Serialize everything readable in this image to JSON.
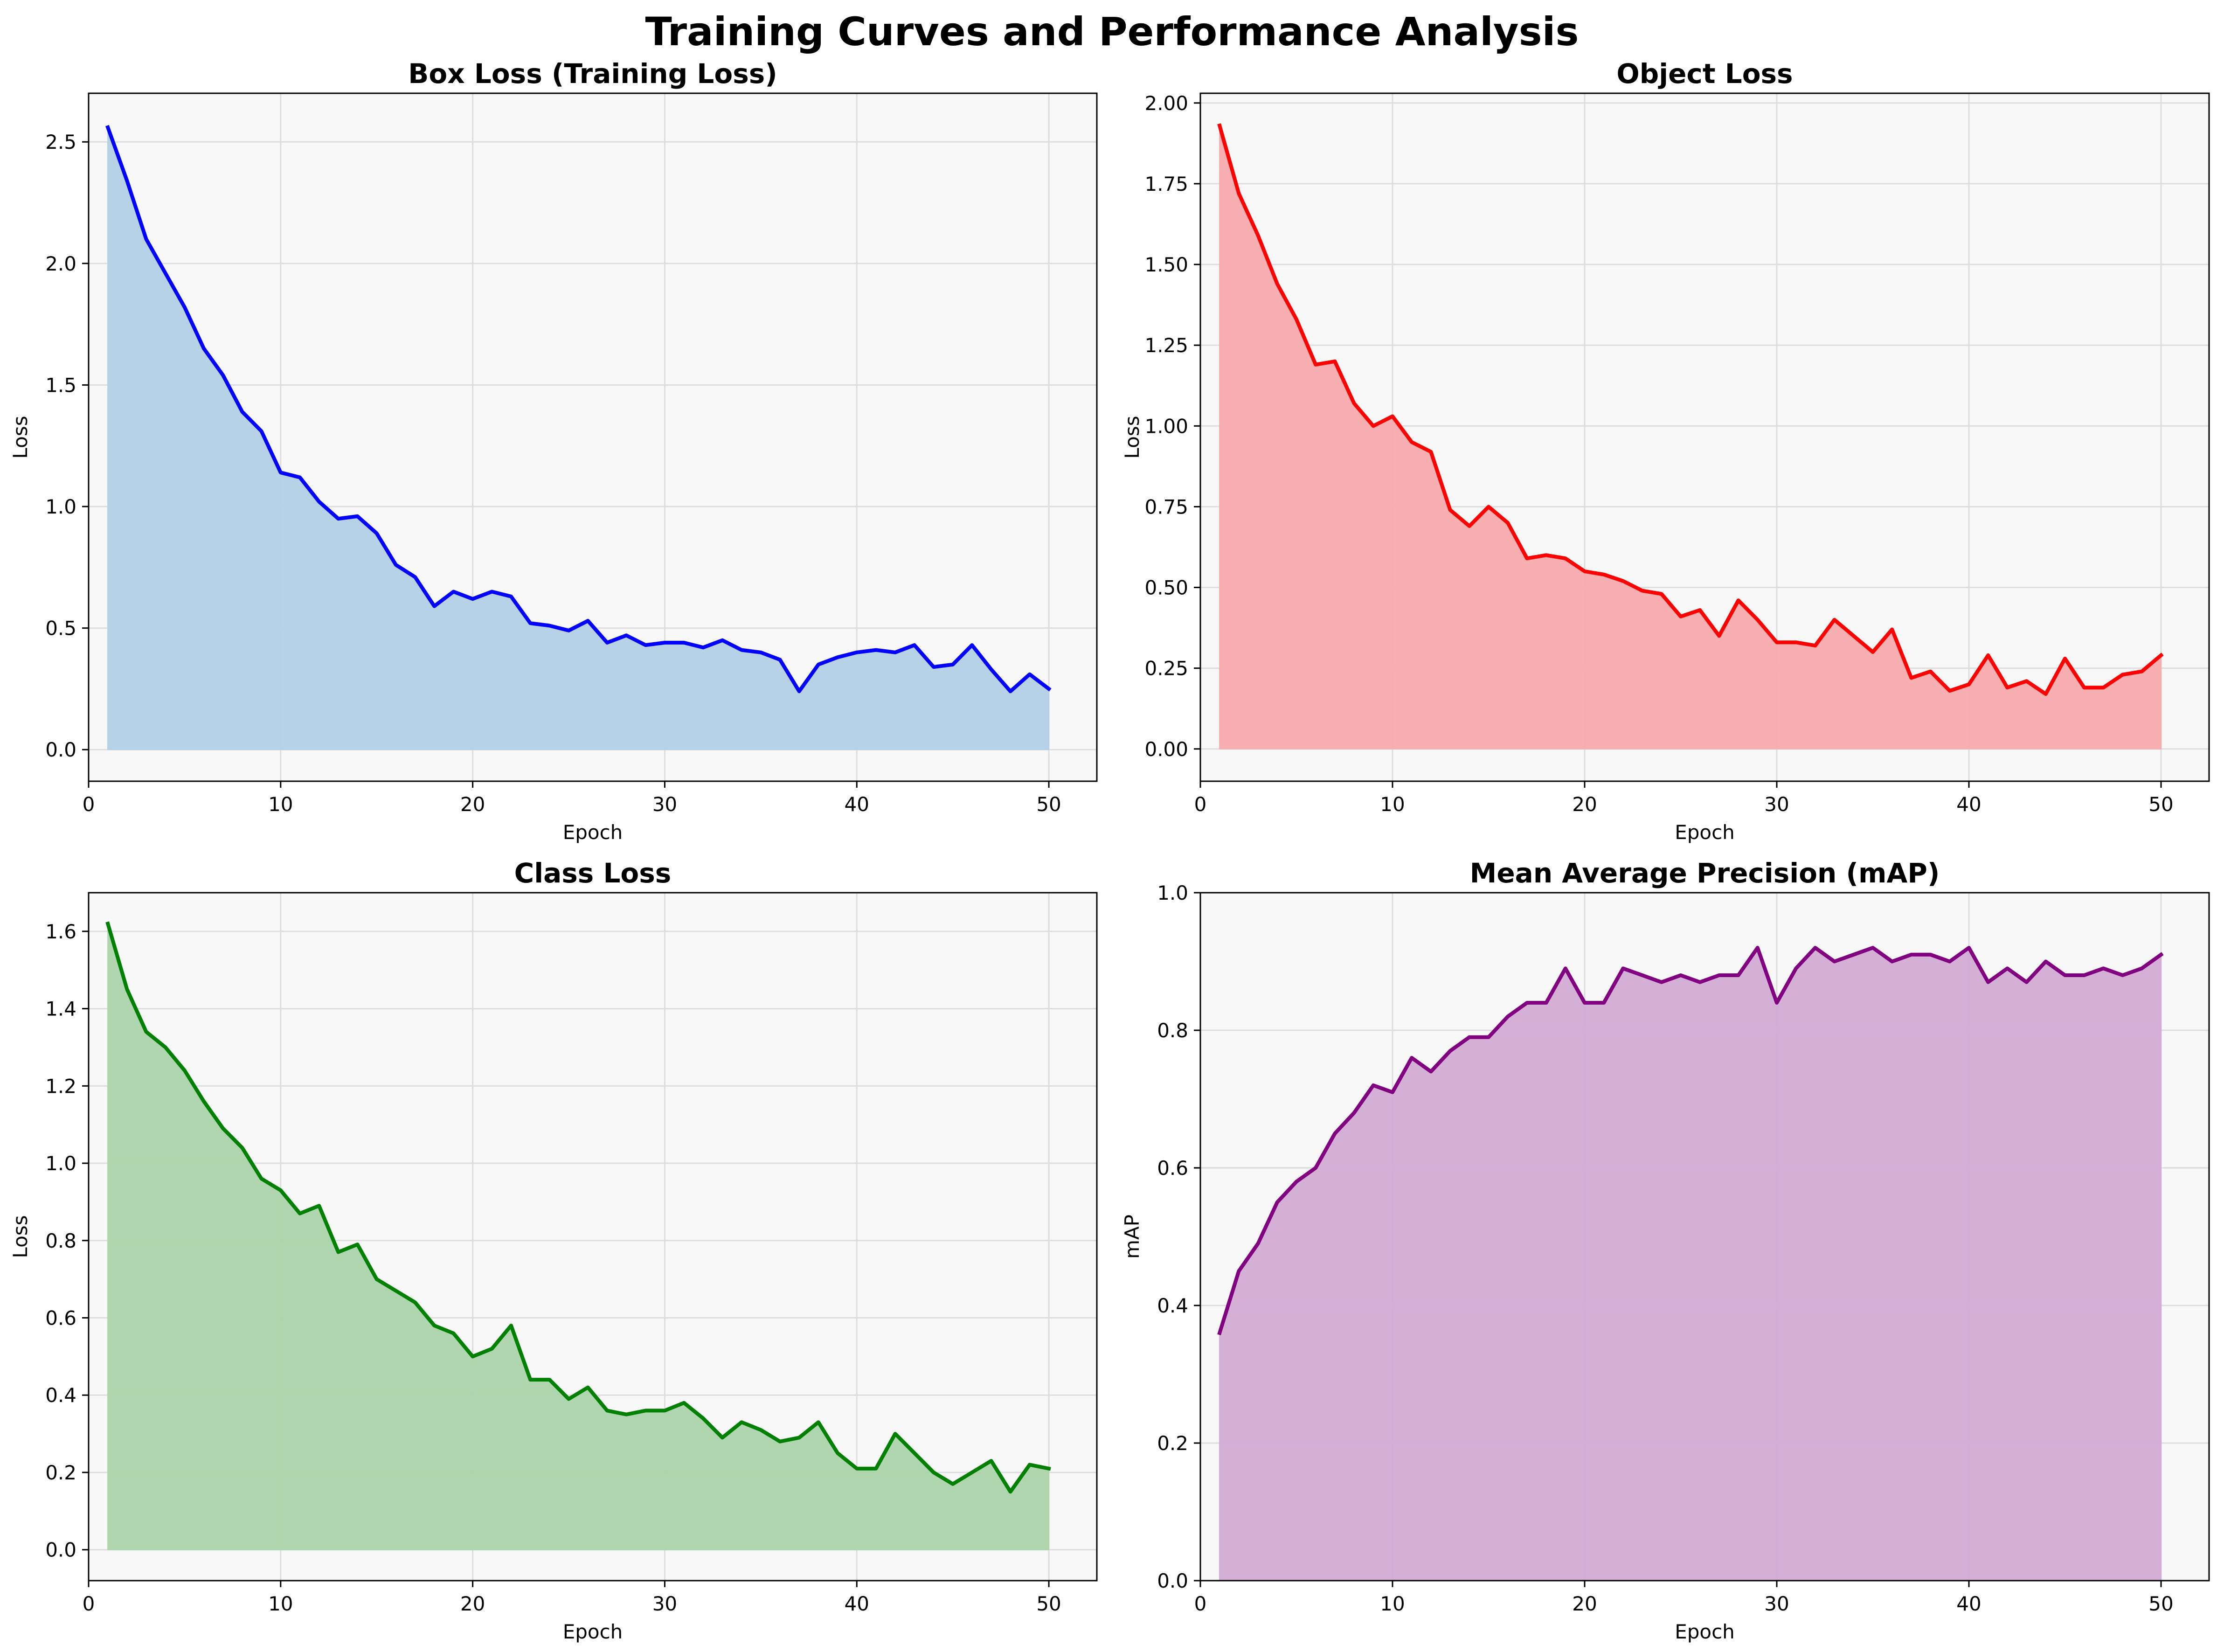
{
  "suptitle": "Training Curves and Performance Analysis",
  "chart_data": [
    {
      "type": "area",
      "title": "Box Loss (Training Loss)",
      "xlabel": "Epoch",
      "ylabel": "Loss",
      "xlim": [
        0,
        52.5
      ],
      "ylim": [
        -0.13,
        2.7
      ],
      "xticks": [
        0,
        10,
        20,
        30,
        40,
        50
      ],
      "yticks": [
        0.0,
        0.5,
        1.0,
        1.5,
        2.0,
        2.5
      ],
      "tick_decimals": 1,
      "grid": true,
      "line_color": "#0000ff",
      "fill_color": "#b3cfe5",
      "x_start": 1,
      "values": [
        2.56,
        2.34,
        2.1,
        1.96,
        1.82,
        1.65,
        1.54,
        1.39,
        1.31,
        1.14,
        1.12,
        1.02,
        0.95,
        0.96,
        0.89,
        0.76,
        0.71,
        0.59,
        0.65,
        0.62,
        0.65,
        0.63,
        0.52,
        0.51,
        0.49,
        0.53,
        0.44,
        0.47,
        0.43,
        0.44,
        0.44,
        0.42,
        0.45,
        0.41,
        0.4,
        0.37,
        0.24,
        0.35,
        0.38,
        0.4,
        0.41,
        0.4,
        0.43,
        0.34,
        0.35,
        0.43,
        0.33,
        0.24,
        0.31,
        0.25
      ]
    },
    {
      "type": "area",
      "title": "Object Loss",
      "xlabel": "Epoch",
      "ylabel": "Loss",
      "xlim": [
        0,
        52.5
      ],
      "ylim": [
        -0.1,
        2.03
      ],
      "xticks": [
        0,
        10,
        20,
        30,
        40,
        50
      ],
      "yticks": [
        0.0,
        0.25,
        0.5,
        0.75,
        1.0,
        1.25,
        1.5,
        1.75,
        2.0
      ],
      "tick_decimals": 2,
      "grid": true,
      "line_color": "#ff0000",
      "fill_color": "#f7abad",
      "x_start": 1,
      "values": [
        1.93,
        1.72,
        1.59,
        1.44,
        1.33,
        1.19,
        1.2,
        1.07,
        1.0,
        1.03,
        0.95,
        0.92,
        0.74,
        0.69,
        0.75,
        0.7,
        0.59,
        0.6,
        0.59,
        0.55,
        0.54,
        0.52,
        0.49,
        0.48,
        0.41,
        0.43,
        0.35,
        0.46,
        0.4,
        0.33,
        0.33,
        0.32,
        0.4,
        0.35,
        0.3,
        0.37,
        0.22,
        0.24,
        0.18,
        0.2,
        0.29,
        0.19,
        0.21,
        0.17,
        0.28,
        0.19,
        0.19,
        0.23,
        0.24,
        0.29
      ]
    },
    {
      "type": "area",
      "title": "Class Loss",
      "xlabel": "Epoch",
      "ylabel": "Loss",
      "xlim": [
        0,
        52.5
      ],
      "ylim": [
        -0.08,
        1.7
      ],
      "xticks": [
        0,
        10,
        20,
        30,
        40,
        50
      ],
      "yticks": [
        0.0,
        0.2,
        0.4,
        0.6,
        0.8,
        1.0,
        1.2,
        1.4,
        1.6
      ],
      "tick_decimals": 1,
      "grid": true,
      "line_color": "#008000",
      "fill_color": "#acd4ab",
      "x_start": 1,
      "values": [
        1.62,
        1.45,
        1.34,
        1.3,
        1.24,
        1.16,
        1.09,
        1.04,
        0.96,
        0.93,
        0.87,
        0.89,
        0.77,
        0.79,
        0.7,
        0.67,
        0.64,
        0.58,
        0.56,
        0.5,
        0.52,
        0.58,
        0.44,
        0.44,
        0.39,
        0.42,
        0.36,
        0.35,
        0.36,
        0.36,
        0.38,
        0.34,
        0.29,
        0.33,
        0.31,
        0.28,
        0.29,
        0.33,
        0.25,
        0.21,
        0.21,
        0.3,
        0.25,
        0.2,
        0.17,
        0.2,
        0.23,
        0.15,
        0.22,
        0.21
      ]
    },
    {
      "type": "area",
      "title": "Mean Average Precision (mAP)",
      "xlabel": "Epoch",
      "ylabel": "mAP",
      "xlim": [
        0,
        52.5
      ],
      "ylim": [
        0,
        1
      ],
      "xticks": [
        0,
        10,
        20,
        30,
        40,
        50
      ],
      "yticks": [
        0.0,
        0.2,
        0.4,
        0.6,
        0.8,
        1.0
      ],
      "tick_decimals": 1,
      "grid": true,
      "line_color": "#800080",
      "fill_color": "#d2abd4",
      "x_start": 1,
      "values": [
        0.36,
        0.45,
        0.49,
        0.55,
        0.58,
        0.6,
        0.65,
        0.68,
        0.72,
        0.71,
        0.76,
        0.74,
        0.77,
        0.79,
        0.79,
        0.82,
        0.84,
        0.84,
        0.89,
        0.84,
        0.84,
        0.89,
        0.88,
        0.87,
        0.88,
        0.87,
        0.88,
        0.88,
        0.92,
        0.84,
        0.89,
        0.92,
        0.9,
        0.91,
        0.92,
        0.9,
        0.91,
        0.91,
        0.9,
        0.92,
        0.87,
        0.89,
        0.87,
        0.9,
        0.88,
        0.88,
        0.89,
        0.88,
        0.89,
        0.91
      ]
    }
  ]
}
